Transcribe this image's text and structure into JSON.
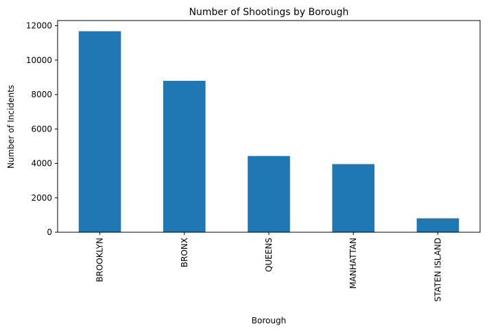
{
  "chart_data": {
    "type": "bar",
    "title": "Number of Shootings by Borough",
    "xlabel": "Borough",
    "ylabel": "Number of Incidents",
    "categories": [
      "BROOKLYN",
      "BRONX",
      "QUEENS",
      "MANHATTAN",
      "STATEN ISLAND"
    ],
    "values": [
      11680,
      8800,
      4430,
      3960,
      810
    ],
    "ylim": [
      0,
      12300
    ],
    "yticks": [
      0,
      2000,
      4000,
      6000,
      8000,
      10000,
      12000
    ],
    "ytick_labels": [
      "0",
      "2000",
      "4000",
      "6000",
      "8000",
      "10000",
      "12000"
    ],
    "bar_color": "#1f77b4",
    "grid": false,
    "legend": "none"
  }
}
